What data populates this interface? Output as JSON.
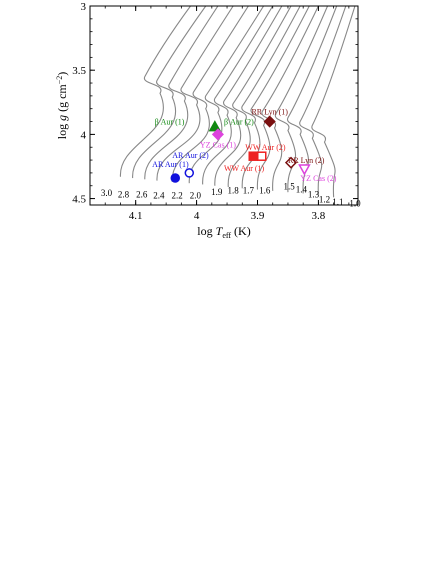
{
  "chart_data": {
    "type": "scatter",
    "xlabel_prefix": "log ",
    "xlabel_var": "T",
    "xlabel_sub": "eff",
    "xlabel_suffix": " (K)",
    "ylabel_prefix": "log ",
    "ylabel_var": "g",
    "ylabel_unit": " (g cm",
    "ylabel_exp": "−2",
    "ylabel_close": ")",
    "xlim": [
      4.175,
      3.735
    ],
    "ylim": [
      4.55,
      3.0
    ],
    "x_reversed": true,
    "y_reversed": true,
    "grid": false,
    "x_ticks": [
      4.1,
      4.0,
      3.9,
      3.8
    ],
    "x_tick_labels": [
      "4.1",
      "4",
      "3.9",
      "3.8"
    ],
    "y_ticks": [
      3.0,
      3.5,
      4.0,
      4.5
    ],
    "y_tick_labels": [
      "3",
      "3.5",
      "4",
      "4.5"
    ],
    "track_color": "#888888",
    "tracks": [
      {
        "mass": "3.0",
        "label_x": 4.148,
        "label_y": 4.45,
        "zams": [
          4.125,
          4.33
        ],
        "tam": [
          4.06,
          3.68
        ],
        "hook": [
          4.085,
          3.55
        ],
        "end": [
          4.01,
          3.0
        ]
      },
      {
        "mass": "2.8",
        "label_x": 4.12,
        "label_y": 4.46,
        "zams": [
          4.105,
          4.34
        ],
        "tam": [
          4.04,
          3.71
        ],
        "hook": [
          4.065,
          3.58
        ],
        "end": [
          3.985,
          3.0
        ]
      },
      {
        "mass": "2.6",
        "label_x": 4.09,
        "label_y": 4.46,
        "zams": [
          4.085,
          4.35
        ],
        "tam": [
          4.02,
          3.74
        ],
        "hook": [
          4.045,
          3.61
        ],
        "end": [
          3.965,
          3.0
        ]
      },
      {
        "mass": "2.4",
        "label_x": 4.062,
        "label_y": 4.47,
        "zams": [
          4.065,
          4.36
        ],
        "tam": [
          4.0,
          3.77
        ],
        "hook": [
          4.025,
          3.64
        ],
        "end": [
          3.94,
          3.0
        ]
      },
      {
        "mass": "2.2",
        "label_x": 4.032,
        "label_y": 4.47,
        "zams": [
          4.04,
          4.37
        ],
        "tam": [
          3.985,
          3.8
        ],
        "hook": [
          4.005,
          3.67
        ],
        "end": [
          3.915,
          3.0
        ]
      },
      {
        "mass": "2.0",
        "label_x": 4.002,
        "label_y": 4.47,
        "zams": [
          4.012,
          4.38
        ],
        "tam": [
          3.965,
          3.83
        ],
        "hook": [
          3.985,
          3.7
        ],
        "end": [
          3.89,
          3.0
        ]
      },
      {
        "mass": "1.9",
        "label_x": 3.967,
        "label_y": 4.44,
        "zams": [
          3.99,
          4.39
        ],
        "tam": [
          3.95,
          3.85
        ],
        "hook": [
          3.97,
          3.72
        ],
        "end": [
          3.875,
          3.0
        ]
      },
      {
        "mass": "1.8",
        "label_x": 3.94,
        "label_y": 4.43,
        "zams": [
          3.97,
          4.4
        ],
        "tam": [
          3.935,
          3.87
        ],
        "hook": [
          3.955,
          3.74
        ],
        "end": [
          3.86,
          3.0
        ]
      },
      {
        "mass": "1.7",
        "label_x": 3.915,
        "label_y": 4.43,
        "zams": [
          3.948,
          4.41
        ],
        "tam": [
          3.92,
          3.89
        ],
        "hook": [
          3.94,
          3.76
        ],
        "end": [
          3.845,
          3.0
        ]
      },
      {
        "mass": "1.6",
        "label_x": 3.888,
        "label_y": 4.43,
        "zams": [
          3.925,
          4.42
        ],
        "tam": [
          3.905,
          3.91
        ],
        "hook": [
          3.925,
          3.78
        ],
        "end": [
          3.83,
          3.0
        ]
      },
      {
        "mass": "1.5",
        "label_x": 3.848,
        "label_y": 4.4,
        "zams": [
          3.9,
          4.43
        ],
        "tam": [
          3.89,
          3.93
        ],
        "hook": [
          3.91,
          3.8
        ],
        "end": [
          3.815,
          3.0
        ]
      },
      {
        "mass": "1.4",
        "label_x": 3.828,
        "label_y": 4.42,
        "zams": [
          3.875,
          4.44
        ],
        "tam": [
          3.872,
          3.95
        ],
        "hook": [
          3.892,
          3.82
        ],
        "end": [
          3.8,
          3.0
        ]
      },
      {
        "mass": "1.3",
        "label_x": 3.808,
        "label_y": 4.46,
        "zams": [
          3.85,
          4.45
        ],
        "tam": [
          3.85,
          3.97
        ],
        "hook": [
          3.87,
          3.84
        ],
        "end": [
          3.785,
          3.0
        ]
      },
      {
        "mass": "1.2",
        "label_x": 3.79,
        "label_y": 4.5,
        "zams": [
          3.825,
          4.46
        ],
        "tam": [
          3.83,
          4.0
        ],
        "hook": [
          3.85,
          3.87
        ],
        "end": [
          3.77,
          3.0
        ]
      },
      {
        "mass": "1.1",
        "label_x": 3.768,
        "label_y": 4.52,
        "zams": [
          3.8,
          4.47
        ],
        "tam": [
          3.81,
          4.03
        ],
        "hook": [
          3.83,
          3.9
        ],
        "end": [
          3.755,
          3.0
        ]
      },
      {
        "mass": "1.0",
        "label_x": 3.74,
        "label_y": 4.53,
        "zams": [
          3.775,
          4.49
        ],
        "tam": [
          3.79,
          4.06
        ],
        "hook": [
          3.81,
          3.93
        ],
        "end": [
          3.74,
          3.0
        ]
      }
    ],
    "stars": [
      {
        "name": "β Aur (1)",
        "x": 3.97,
        "y": 3.94,
        "marker": "triangle",
        "filled": true,
        "color": "#118811",
        "label_x": 4.02,
        "label_y": 3.9,
        "anchor": "end"
      },
      {
        "name": "β Aur (2)",
        "x": 3.97,
        "y": 3.94,
        "marker": "none",
        "filled": false,
        "color": "#118811",
        "label_x": 3.955,
        "label_y": 3.9,
        "anchor": "start"
      },
      {
        "name": "YZ Cas (1)",
        "x": 3.965,
        "y": 4.0,
        "marker": "diamond",
        "filled": true,
        "color": "#dd44dd",
        "label_x": 3.965,
        "label_y": 4.08,
        "anchor": "middle"
      },
      {
        "name": "RR Lyn (1)",
        "x": 3.88,
        "y": 3.9,
        "marker": "diamond",
        "filled": true,
        "color": "#7a1010",
        "label_x": 3.88,
        "label_y": 3.82,
        "anchor": "middle"
      },
      {
        "name": "AR Aur (1)",
        "x": 4.035,
        "y": 4.34,
        "marker": "circle",
        "filled": true,
        "color": "#1111dd",
        "label_x": 4.043,
        "label_y": 4.23,
        "anchor": "middle"
      },
      {
        "name": "AR Aur (2)",
        "x": 4.012,
        "y": 4.3,
        "marker": "circle",
        "filled": false,
        "color": "#1111dd",
        "label_x": 4.01,
        "label_y": 4.16,
        "anchor": "middle"
      },
      {
        "name": "WW Aur (1)",
        "x": 3.907,
        "y": 4.17,
        "marker": "square",
        "filled": true,
        "color": "#ee2222",
        "label_x": 3.922,
        "label_y": 4.26,
        "anchor": "middle"
      },
      {
        "name": "WW Aur (2)",
        "x": 3.893,
        "y": 4.17,
        "marker": "square",
        "filled": false,
        "color": "#ee2222",
        "label_x": 3.887,
        "label_y": 4.1,
        "anchor": "middle"
      },
      {
        "name": "RR Lyn (2)",
        "x": 3.845,
        "y": 4.22,
        "marker": "diamond",
        "filled": false,
        "color": "#7a1010",
        "label_x": 3.82,
        "label_y": 4.2,
        "anchor": "middle"
      },
      {
        "name": "YZ Cas (2)",
        "x": 3.823,
        "y": 4.27,
        "marker": "triangle-down",
        "filled": false,
        "color": "#dd44dd",
        "label_x": 3.8,
        "label_y": 4.34,
        "anchor": "middle"
      }
    ]
  }
}
